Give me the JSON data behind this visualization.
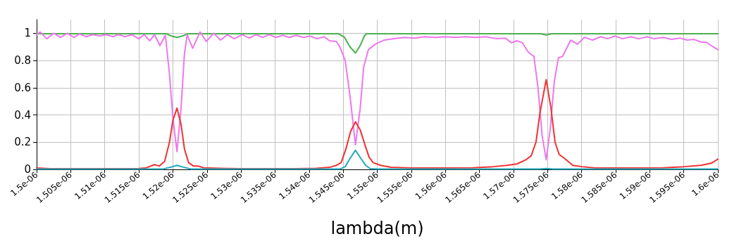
{
  "chart_data": {
    "type": "line",
    "xlabel": "lambda(m)",
    "grid": true,
    "marker": "none",
    "line_style": "solid",
    "xlim": [
      1.5e-06,
      1.6e-06
    ],
    "ylim": [
      0,
      1.1
    ],
    "xticks": [
      {
        "value": 1.5e-06,
        "label": "1.5e-06"
      },
      {
        "value": 1.505e-06,
        "label": "1.505e-06"
      },
      {
        "value": 1.51e-06,
        "label": "1.51e-06"
      },
      {
        "value": 1.515e-06,
        "label": "1.515e-06"
      },
      {
        "value": 1.52e-06,
        "label": "1.52e-06"
      },
      {
        "value": 1.525e-06,
        "label": "1.525e-06"
      },
      {
        "value": 1.53e-06,
        "label": "1.53e-06"
      },
      {
        "value": 1.535e-06,
        "label": "1.535e-06"
      },
      {
        "value": 1.54e-06,
        "label": "1.54e-06"
      },
      {
        "value": 1.545e-06,
        "label": "1.545e-06"
      },
      {
        "value": 1.55e-06,
        "label": "1.55e-06"
      },
      {
        "value": 1.555e-06,
        "label": "1.555e-06"
      },
      {
        "value": 1.56e-06,
        "label": "1.56e-06"
      },
      {
        "value": 1.565e-06,
        "label": "1.565e-06"
      },
      {
        "value": 1.57e-06,
        "label": "1.57e-06"
      },
      {
        "value": 1.575e-06,
        "label": "1.575e-06"
      },
      {
        "value": 1.58e-06,
        "label": "1.58e-06"
      },
      {
        "value": 1.585e-06,
        "label": "1.585e-06"
      },
      {
        "value": 1.59e-06,
        "label": "1.59e-06"
      },
      {
        "value": 1.595e-06,
        "label": "1.595e-06"
      },
      {
        "value": 1.6e-06,
        "label": "1.6e-06"
      }
    ],
    "yticks": [
      0,
      0.2,
      0.4,
      0.6,
      0.8,
      1
    ],
    "series": [
      {
        "color": "#4caf50",
        "x": [
          1.5e-06,
          1.519e-06,
          1.5198e-06,
          1.5206e-06,
          1.5214e-06,
          1.5222e-06,
          1.5443e-06,
          1.5452e-06,
          1.546e-06,
          1.5468e-06,
          1.5475e-06,
          1.5481e-06,
          1.5484e-06,
          1.574e-06,
          1.5748e-06,
          1.5756e-06,
          1.6e-06
        ],
        "values": [
          0.997,
          0.997,
          0.98,
          0.97,
          0.98,
          0.997,
          0.997,
          0.97,
          0.9,
          0.855,
          0.91,
          0.98,
          0.997,
          0.997,
          0.988,
          0.997,
          0.997
        ]
      },
      {
        "color": "#ee77ee",
        "x": [
          1.5e-06,
          1.5005e-06,
          1.5015e-06,
          1.5025e-06,
          1.5035e-06,
          1.5045e-06,
          1.5055e-06,
          1.5063e-06,
          1.5073e-06,
          1.5082e-06,
          1.5093e-06,
          1.5102e-06,
          1.5112e-06,
          1.512e-06,
          1.513e-06,
          1.514e-06,
          1.515e-06,
          1.5158e-06,
          1.5166e-06,
          1.5173e-06,
          1.5181e-06,
          1.5189e-06,
          1.5195e-06,
          1.52e-06,
          1.5206e-06,
          1.5212e-06,
          1.5217e-06,
          1.5221e-06,
          1.5229e-06,
          1.524e-06,
          1.5249e-06,
          1.526e-06,
          1.527e-06,
          1.528e-06,
          1.529e-06,
          1.5302e-06,
          1.5312e-06,
          1.5322e-06,
          1.5332e-06,
          1.5341e-06,
          1.5351e-06,
          1.5361e-06,
          1.5371e-06,
          1.5381e-06,
          1.5392e-06,
          1.5401e-06,
          1.5412e-06,
          1.5422e-06,
          1.543e-06,
          1.544e-06,
          1.5445e-06,
          1.5453e-06,
          1.546e-06,
          1.5468e-06,
          1.5475e-06,
          1.548e-06,
          1.5487e-06,
          1.5497e-06,
          1.551e-06,
          1.5525e-06,
          1.554e-06,
          1.5555e-06,
          1.557e-06,
          1.5585e-06,
          1.56e-06,
          1.5615e-06,
          1.563e-06,
          1.5645e-06,
          1.566e-06,
          1.5675e-06,
          1.5688e-06,
          1.5697e-06,
          1.5705e-06,
          1.5713e-06,
          1.5722e-06,
          1.573e-06,
          1.5736e-06,
          1.5742e-06,
          1.5748e-06,
          1.5754e-06,
          1.576e-06,
          1.5766e-06,
          1.5772e-06,
          1.5784e-06,
          1.5794e-06,
          1.5804e-06,
          1.5816e-06,
          1.5828e-06,
          1.5838e-06,
          1.5849e-06,
          1.586e-06,
          1.5872e-06,
          1.5884e-06,
          1.5896e-06,
          1.5907e-06,
          1.592e-06,
          1.5932e-06,
          1.5944e-06,
          1.5955e-06,
          1.5965e-06,
          1.5976e-06,
          1.5983e-06,
          1.599e-06,
          1.6e-06
        ],
        "values": [
          0.99,
          1.01,
          0.96,
          1.0,
          0.97,
          1.0,
          0.97,
          0.995,
          0.975,
          0.99,
          0.98,
          0.99,
          0.975,
          0.99,
          0.975,
          0.99,
          0.96,
          0.99,
          0.945,
          0.99,
          0.91,
          0.985,
          0.7,
          0.38,
          0.13,
          0.45,
          0.85,
          0.99,
          0.89,
          1.01,
          0.94,
          1.0,
          0.95,
          0.99,
          0.96,
          0.99,
          0.965,
          0.99,
          0.97,
          0.99,
          0.97,
          0.985,
          0.97,
          0.985,
          0.97,
          0.98,
          0.96,
          0.975,
          0.945,
          0.94,
          0.9,
          0.8,
          0.54,
          0.18,
          0.45,
          0.75,
          0.88,
          0.92,
          0.95,
          0.96,
          0.97,
          0.965,
          0.975,
          0.97,
          0.975,
          0.97,
          0.975,
          0.97,
          0.975,
          0.96,
          0.965,
          0.93,
          0.945,
          0.93,
          0.86,
          0.83,
          0.6,
          0.25,
          0.07,
          0.3,
          0.65,
          0.82,
          0.83,
          0.95,
          0.92,
          0.97,
          0.95,
          0.975,
          0.96,
          0.98,
          0.96,
          0.975,
          0.96,
          0.975,
          0.96,
          0.97,
          0.955,
          0.965,
          0.95,
          0.955,
          0.935,
          0.935,
          0.91,
          0.88
        ]
      },
      {
        "color": "#ee3333",
        "x": [
          1.5e-06,
          1.502e-06,
          1.51e-06,
          1.515e-06,
          1.516e-06,
          1.5173e-06,
          1.518e-06,
          1.5188e-06,
          1.5195e-06,
          1.52e-06,
          1.5206e-06,
          1.5212e-06,
          1.5217e-06,
          1.5223e-06,
          1.523e-06,
          1.5237e-06,
          1.5245e-06,
          1.527e-06,
          1.53e-06,
          1.538e-06,
          1.541e-06,
          1.543e-06,
          1.544e-06,
          1.5447e-06,
          1.5454e-06,
          1.5461e-06,
          1.5468e-06,
          1.5475e-06,
          1.5482e-06,
          1.5488e-06,
          1.5494e-06,
          1.5505e-06,
          1.552e-06,
          1.555e-06,
          1.56e-06,
          1.564e-06,
          1.567e-06,
          1.569e-06,
          1.5705e-06,
          1.5718e-06,
          1.5726e-06,
          1.5733e-06,
          1.5739e-06,
          1.5748e-06,
          1.5755e-06,
          1.5761e-06,
          1.5767e-06,
          1.5775e-06,
          1.5787e-06,
          1.58e-06,
          1.582e-06,
          1.588e-06,
          1.592e-06,
          1.595e-06,
          1.5975e-06,
          1.599e-06,
          1.6e-06
        ],
        "values": [
          0.01,
          0.005,
          0.005,
          0.006,
          0.01,
          0.035,
          0.025,
          0.06,
          0.2,
          0.36,
          0.45,
          0.33,
          0.15,
          0.05,
          0.025,
          0.025,
          0.012,
          0.008,
          0.005,
          0.005,
          0.008,
          0.015,
          0.03,
          0.05,
          0.15,
          0.28,
          0.35,
          0.29,
          0.18,
          0.09,
          0.05,
          0.03,
          0.015,
          0.01,
          0.01,
          0.012,
          0.02,
          0.03,
          0.04,
          0.07,
          0.1,
          0.2,
          0.42,
          0.66,
          0.45,
          0.2,
          0.11,
          0.08,
          0.03,
          0.02,
          0.01,
          0.01,
          0.012,
          0.02,
          0.03,
          0.045,
          0.075
        ]
      },
      {
        "color": "#22aabb",
        "x": [
          1.5e-06,
          1.5185e-06,
          1.5196e-06,
          1.5206e-06,
          1.5216e-06,
          1.5227e-06,
          1.5445e-06,
          1.5453e-06,
          1.546e-06,
          1.5468e-06,
          1.5476e-06,
          1.5483e-06,
          1.549e-06,
          1.55e-06,
          1.5738e-06,
          1.5748e-06,
          1.5758e-06,
          1.6e-06
        ],
        "values": [
          0.002,
          0.002,
          0.015,
          0.03,
          0.015,
          0.002,
          0.002,
          0.02,
          0.08,
          0.14,
          0.08,
          0.03,
          0.005,
          0.002,
          0.002,
          0.006,
          0.002,
          0.002
        ]
      }
    ]
  }
}
